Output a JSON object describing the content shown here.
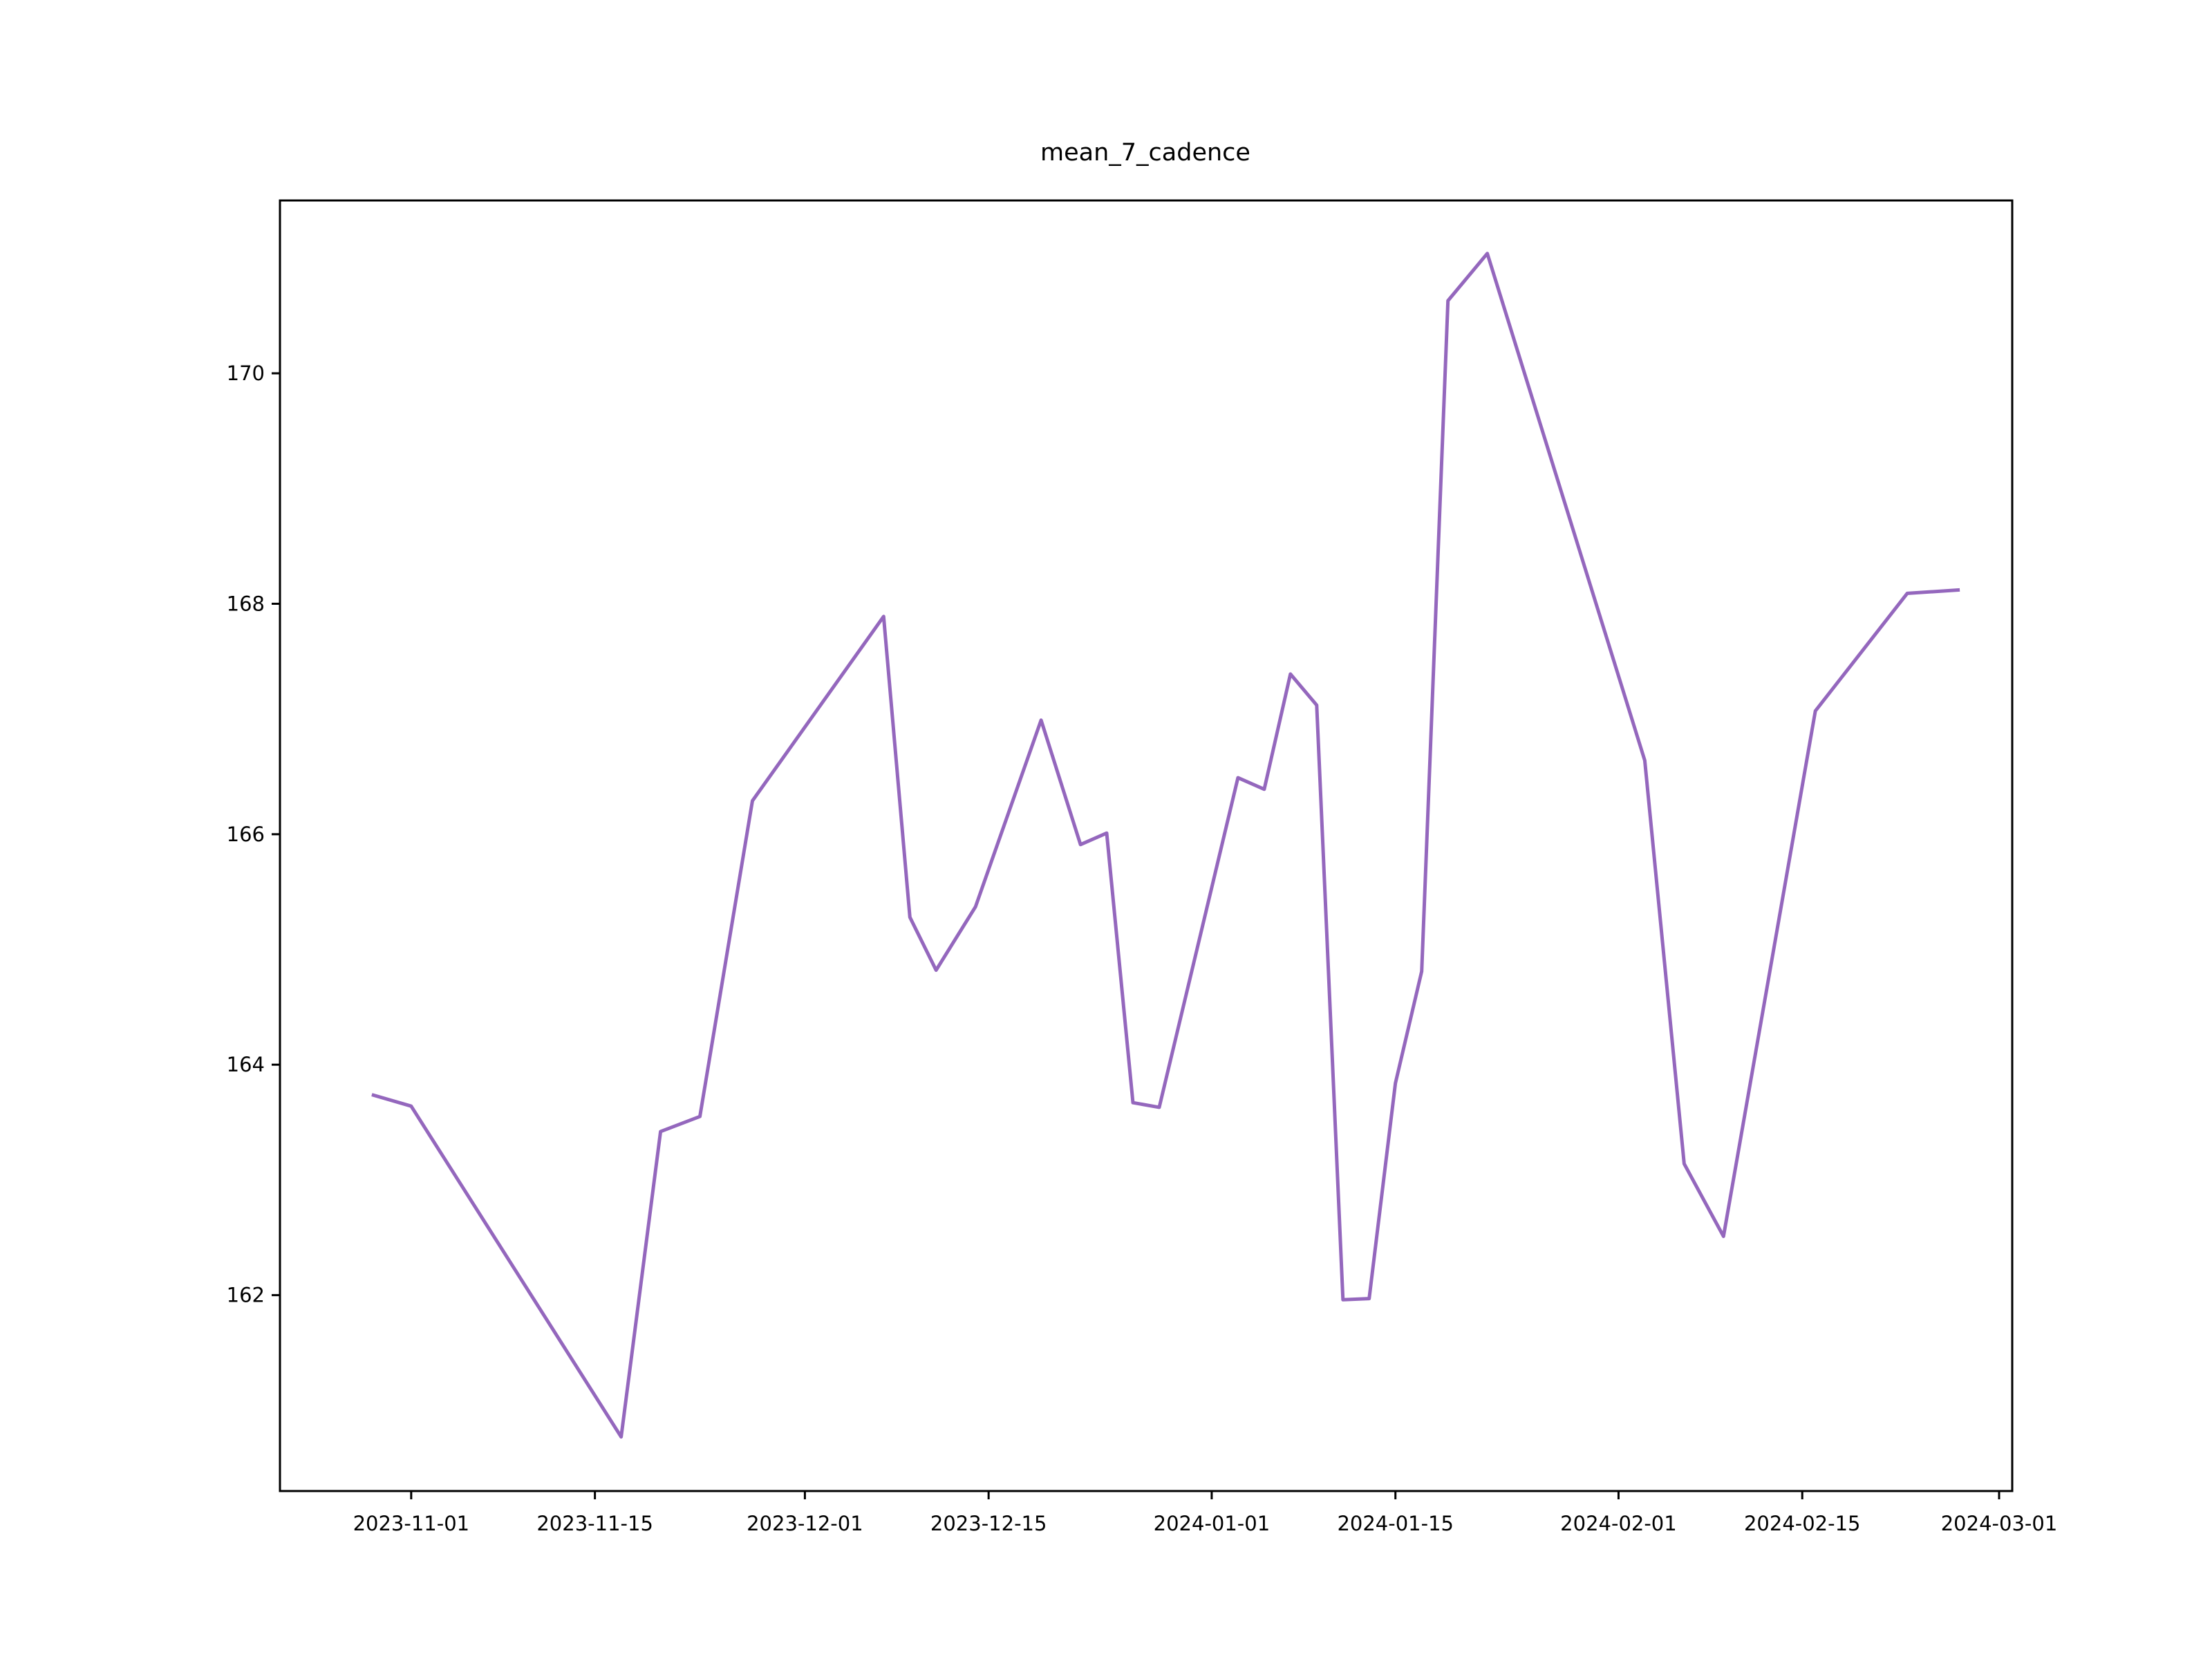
{
  "chart_data": {
    "type": "line",
    "title": "mean_7_cadence",
    "xlabel": "",
    "ylabel": "",
    "x_ticks": [
      "2023-11-01",
      "2023-11-15",
      "2023-12-01",
      "2023-12-15",
      "2024-01-01",
      "2024-01-15",
      "2024-02-01",
      "2024-02-15",
      "2024-03-01"
    ],
    "y_ticks": [
      162,
      164,
      166,
      168,
      170
    ],
    "xlim": [
      "2023-10-22",
      "2024-03-02"
    ],
    "ylim": [
      160.3,
      171.5
    ],
    "grid": false,
    "legend": false,
    "line_color": "#9467bd",
    "series": [
      {
        "x": [
          "2023-10-29",
          "2023-11-01",
          "2023-11-17",
          "2023-11-20",
          "2023-11-23",
          "2023-11-27",
          "2023-12-07",
          "2023-12-09",
          "2023-12-11",
          "2023-12-14",
          "2023-12-19",
          "2023-12-22",
          "2023-12-24",
          "2023-12-26",
          "2023-12-28",
          "2024-01-03",
          "2024-01-05",
          "2024-01-07",
          "2024-01-09",
          "2024-01-11",
          "2024-01-13",
          "2024-01-15",
          "2024-01-17",
          "2024-01-19",
          "2024-01-22",
          "2024-02-03",
          "2024-02-06",
          "2024-02-09",
          "2024-02-16",
          "2024-02-23",
          "2024-02-27"
        ],
        "values": [
          163.74,
          163.64,
          160.77,
          163.42,
          163.55,
          166.29,
          167.89,
          165.28,
          164.82,
          165.37,
          166.99,
          165.91,
          166.01,
          163.67,
          163.63,
          166.49,
          166.39,
          167.39,
          167.12,
          161.96,
          161.97,
          163.84,
          164.81,
          170.63,
          171.04,
          166.64,
          163.14,
          162.51,
          167.07,
          168.09,
          168.12
        ]
      }
    ]
  }
}
